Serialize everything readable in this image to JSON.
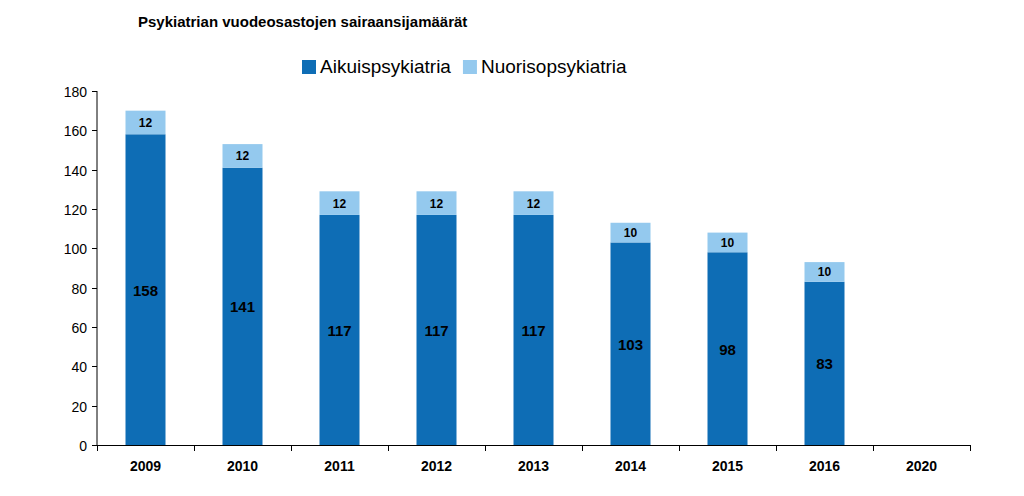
{
  "chart_data": {
    "type": "bar",
    "title": "Psykiatrian vuodeosastojen sairaansijamäärät",
    "categories": [
      "2009",
      "2010",
      "2011",
      "2012",
      "2013",
      "2014",
      "2015",
      "2016",
      "2020"
    ],
    "series": [
      {
        "name": "Aikuispsykiatria",
        "color": "#0e6db5",
        "values": [
          158,
          141,
          117,
          117,
          117,
          103,
          98,
          83,
          null
        ]
      },
      {
        "name": "Nuorisopsykiatria",
        "color": "#94c9ee",
        "values": [
          12,
          12,
          12,
          12,
          12,
          10,
          10,
          10,
          null
        ]
      }
    ],
    "ylim": [
      0,
      180
    ],
    "yticks": [
      0,
      20,
      40,
      60,
      80,
      100,
      120,
      140,
      160,
      180
    ],
    "stacked": true,
    "data_labels": true,
    "grid": false,
    "legend": "top"
  }
}
